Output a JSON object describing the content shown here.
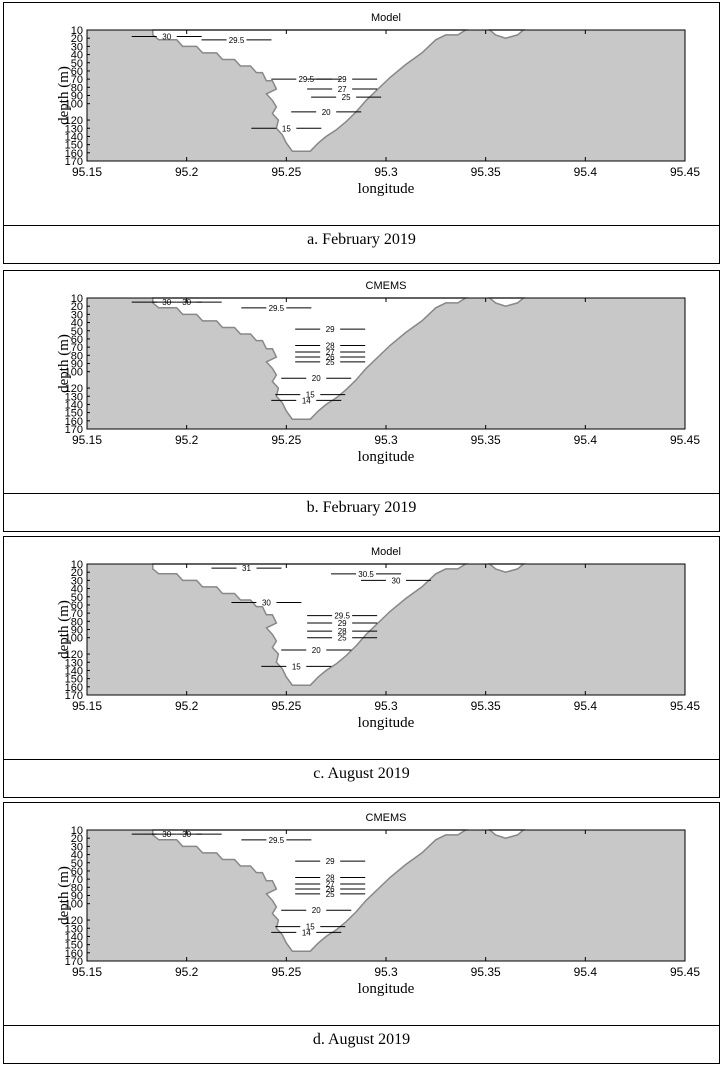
{
  "panels": [
    {
      "title": "Model",
      "caption": "a. February 2019"
    },
    {
      "title": "CMEMS",
      "caption": "b. February 2019"
    },
    {
      "title": "Model",
      "caption": "c. August 2019"
    },
    {
      "title": "CMEMS",
      "caption": "d. August 2019"
    }
  ],
  "colors": {
    "land": "#c8c8c8",
    "water": "#ffffff",
    "contour": "#000000"
  },
  "chart_data": [
    {
      "type": "contour",
      "title": "Model",
      "xlabel": "longitude",
      "ylabel": "depth (m)",
      "xlim": [
        95.15,
        95.45
      ],
      "ylim": [
        170,
        10
      ],
      "xticks": [
        95.15,
        95.2,
        95.25,
        95.3,
        95.35,
        95.4,
        95.45
      ],
      "yticks": [
        10,
        20,
        30,
        40,
        50,
        60,
        70,
        80,
        90,
        100,
        120,
        130,
        140,
        150,
        160,
        170
      ],
      "contours": [
        {
          "level": "30",
          "x": 95.19,
          "y": 18
        },
        {
          "level": "29.5",
          "x": 95.225,
          "y": 22
        },
        {
          "level": "29.5",
          "x": 95.26,
          "y": 70
        },
        {
          "level": "29",
          "x": 95.278,
          "y": 70
        },
        {
          "level": "27",
          "x": 95.278,
          "y": 82
        },
        {
          "level": "25",
          "x": 95.28,
          "y": 92
        },
        {
          "level": "20",
          "x": 95.27,
          "y": 110
        },
        {
          "level": "15",
          "x": 95.25,
          "y": 130
        }
      ]
    },
    {
      "type": "contour",
      "title": "CMEMS",
      "xlabel": "longitude",
      "ylabel": "depth (m)",
      "xlim": [
        95.15,
        95.45
      ],
      "ylim": [
        170,
        10
      ],
      "xticks": [
        95.15,
        95.2,
        95.25,
        95.3,
        95.35,
        95.4,
        95.45
      ],
      "yticks": [
        10,
        20,
        30,
        40,
        50,
        60,
        70,
        80,
        90,
        100,
        120,
        130,
        140,
        150,
        160,
        170
      ],
      "contours": [
        {
          "level": "30",
          "x": 95.19,
          "y": 15
        },
        {
          "level": "30",
          "x": 95.2,
          "y": 15
        },
        {
          "level": "29.5",
          "x": 95.245,
          "y": 22
        },
        {
          "level": "29",
          "x": 95.272,
          "y": 48
        },
        {
          "level": "28",
          "x": 95.272,
          "y": 68
        },
        {
          "level": "27",
          "x": 95.272,
          "y": 76
        },
        {
          "level": "26",
          "x": 95.272,
          "y": 82
        },
        {
          "level": "25",
          "x": 95.272,
          "y": 88
        },
        {
          "level": "20",
          "x": 95.265,
          "y": 108
        },
        {
          "level": "15",
          "x": 95.262,
          "y": 128
        },
        {
          "level": "14",
          "x": 95.26,
          "y": 135
        }
      ]
    },
    {
      "type": "contour",
      "title": "Model",
      "xlabel": "longitude",
      "ylabel": "depth (m)",
      "xlim": [
        95.15,
        95.45
      ],
      "ylim": [
        170,
        10
      ],
      "xticks": [
        95.15,
        95.2,
        95.25,
        95.3,
        95.35,
        95.4,
        95.45
      ],
      "yticks": [
        10,
        20,
        30,
        40,
        50,
        60,
        70,
        80,
        90,
        100,
        120,
        130,
        140,
        150,
        160,
        170
      ],
      "contours": [
        {
          "level": "31",
          "x": 95.23,
          "y": 15
        },
        {
          "level": "30.5",
          "x": 95.29,
          "y": 22
        },
        {
          "level": "30",
          "x": 95.305,
          "y": 30
        },
        {
          "level": "30",
          "x": 95.24,
          "y": 57
        },
        {
          "level": "29.5",
          "x": 95.278,
          "y": 73
        },
        {
          "level": "29",
          "x": 95.278,
          "y": 82
        },
        {
          "level": "28",
          "x": 95.278,
          "y": 92
        },
        {
          "level": "25",
          "x": 95.278,
          "y": 100
        },
        {
          "level": "20",
          "x": 95.265,
          "y": 115
        },
        {
          "level": "15",
          "x": 95.255,
          "y": 135
        }
      ]
    },
    {
      "type": "contour",
      "title": "CMEMS",
      "xlabel": "longitude",
      "ylabel": "depth (m)",
      "xlim": [
        95.15,
        95.45
      ],
      "ylim": [
        170,
        10
      ],
      "xticks": [
        95.15,
        95.2,
        95.25,
        95.3,
        95.35,
        95.4,
        95.45
      ],
      "yticks": [
        10,
        20,
        30,
        40,
        50,
        60,
        70,
        80,
        90,
        100,
        120,
        130,
        140,
        150,
        160,
        170
      ],
      "contours": [
        {
          "level": "30",
          "x": 95.19,
          "y": 15
        },
        {
          "level": "30",
          "x": 95.2,
          "y": 15
        },
        {
          "level": "29.5",
          "x": 95.245,
          "y": 22
        },
        {
          "level": "29",
          "x": 95.272,
          "y": 48
        },
        {
          "level": "28",
          "x": 95.272,
          "y": 68
        },
        {
          "level": "27",
          "x": 95.272,
          "y": 76
        },
        {
          "level": "26",
          "x": 95.272,
          "y": 82
        },
        {
          "level": "25",
          "x": 95.272,
          "y": 88
        },
        {
          "level": "20",
          "x": 95.265,
          "y": 108
        },
        {
          "level": "15",
          "x": 95.262,
          "y": 128
        },
        {
          "level": "14",
          "x": 95.26,
          "y": 135
        }
      ]
    }
  ]
}
